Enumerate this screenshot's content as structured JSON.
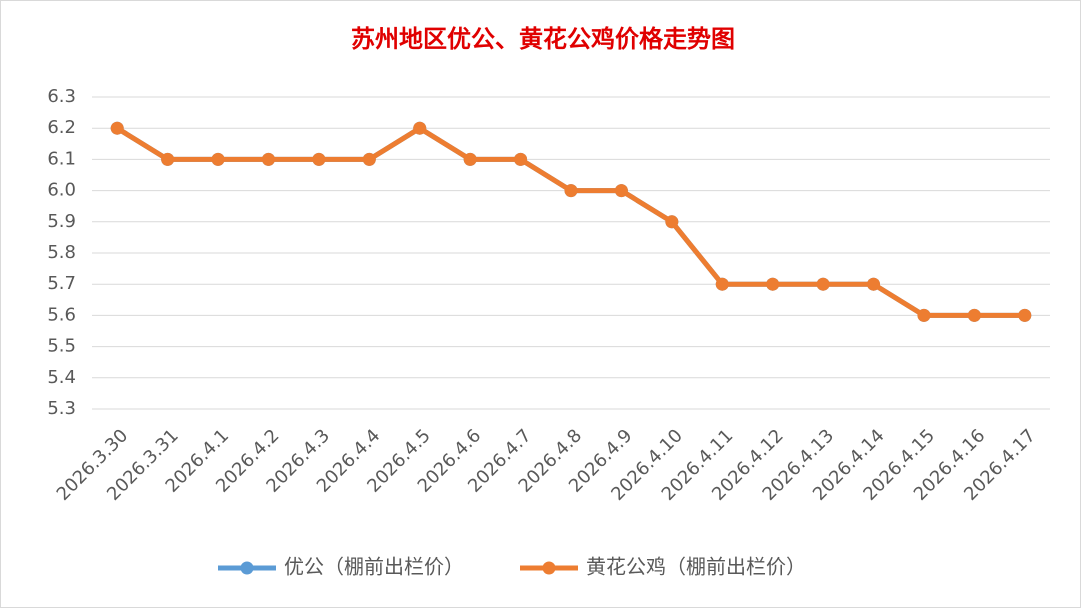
{
  "chart_data": {
    "type": "line",
    "title": "苏州地区优公、黄花公鸡价格走势图",
    "categories": [
      "2026.3.30",
      "2026.3.31",
      "2026.4.1",
      "2026.4.2",
      "2026.4.3",
      "2026.4.4",
      "2026.4.5",
      "2026.4.6",
      "2026.4.7",
      "2026.4.8",
      "2026.4.9",
      "2026.4.10",
      "2026.4.11",
      "2026.4.12",
      "2026.4.13",
      "2026.4.14",
      "2026.4.15",
      "2026.4.16",
      "2026.4.17"
    ],
    "series": [
      {
        "name": "优公（棚前出栏价）",
        "color": "#5b9bd5",
        "values": [
          6.2,
          6.1,
          6.1,
          6.1,
          6.1,
          6.1,
          6.2,
          6.1,
          6.1,
          6.0,
          6.0,
          5.9,
          5.7,
          5.7,
          5.7,
          5.7,
          5.6,
          5.6,
          5.6
        ]
      },
      {
        "name": "黄花公鸡（棚前出栏价）",
        "color": "#ed7d31",
        "values": [
          6.2,
          6.1,
          6.1,
          6.1,
          6.1,
          6.1,
          6.2,
          6.1,
          6.1,
          6.0,
          6.0,
          5.9,
          5.7,
          5.7,
          5.7,
          5.7,
          5.6,
          5.6,
          5.6
        ]
      }
    ],
    "ylim": [
      5.3,
      6.3
    ],
    "yticks": [
      5.3,
      5.4,
      5.5,
      5.6,
      5.7,
      5.8,
      5.9,
      {
        "value": 6,
        "label": "6.0"
      },
      6.1,
      6.2,
      6.3
    ],
    "grid": true,
    "legend": "bottom"
  }
}
